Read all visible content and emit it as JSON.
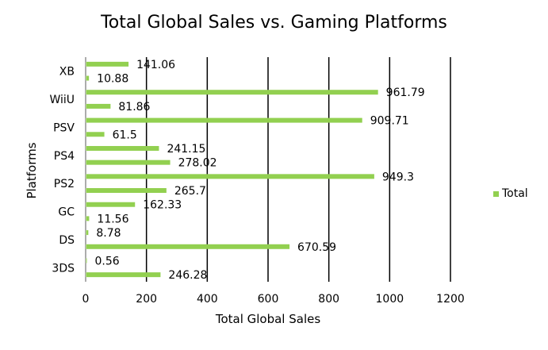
{
  "chart_data": {
    "type": "bar",
    "orientation": "horizontal",
    "title": "Total Global Sales vs. Gaming Platforms",
    "xlabel": "Total Global Sales",
    "ylabel": "Platforms",
    "xlim": [
      0,
      1200
    ],
    "xticks": [
      0,
      200,
      400,
      600,
      800,
      1000,
      1200
    ],
    "grid": true,
    "legend_position": "right",
    "color": "#92D050",
    "category_labels": [
      "3DS",
      "DS",
      "GC",
      "PS2",
      "PS4",
      "PSV",
      "WiiU",
      "XB"
    ],
    "series": [
      {
        "name": "Total",
        "bars_bottom_to_top": [
          {
            "value": 246.28,
            "label": "246.28"
          },
          {
            "value": 0.56,
            "label": "0.56"
          },
          {
            "value": 670.59,
            "label": "670.59"
          },
          {
            "value": 8.78,
            "label": "8.78"
          },
          {
            "value": 11.56,
            "label": "11.56"
          },
          {
            "value": 162.33,
            "label": "162.33"
          },
          {
            "value": 265.7,
            "label": "265.7"
          },
          {
            "value": 949.3,
            "label": "949.3"
          },
          {
            "value": 278.02,
            "label": "278.02"
          },
          {
            "value": 241.15,
            "label": "241.15"
          },
          {
            "value": 61.5,
            "label": "61.5"
          },
          {
            "value": 909.71,
            "label": "909.71"
          },
          {
            "value": 81.86,
            "label": "81.86"
          },
          {
            "value": 961.79,
            "label": "961.79"
          },
          {
            "value": 10.88,
            "label": "10.88"
          },
          {
            "value": 141.06,
            "label": "141.06"
          }
        ]
      }
    ]
  }
}
